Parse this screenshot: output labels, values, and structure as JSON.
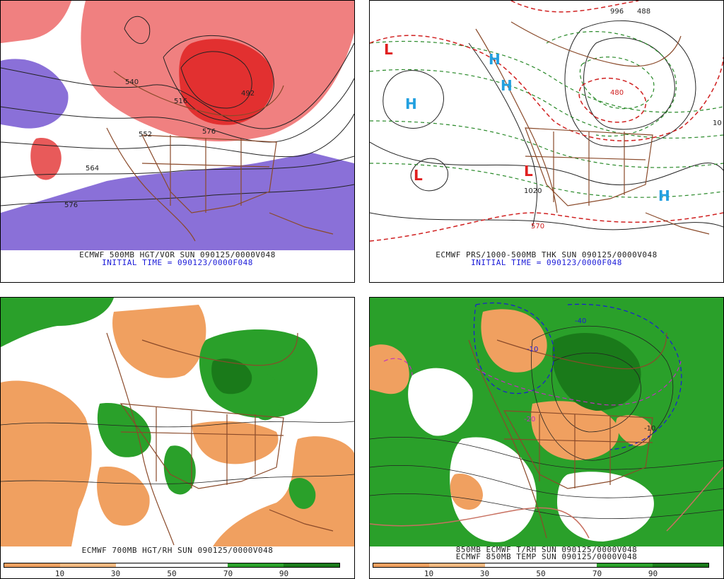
{
  "panels": {
    "p1": {
      "caption1": "ECMWF 500MB HGT/VOR SUN 090125/0000V048",
      "caption2": "INITIAL TIME = 090123/0000F048",
      "contour_labels": [
        "540",
        "516",
        "492",
        "564",
        "552",
        "576",
        "576"
      ]
    },
    "p2": {
      "caption1": "ECMWF PRS/1000-500MB THK SUN 090125/0000V048",
      "caption2": "INITIAL TIME = 090123/0000F048",
      "high_label": "H",
      "low_label": "L",
      "contour_labels": [
        "996",
        "488",
        "480",
        "1020",
        "570",
        "10"
      ]
    },
    "p3": {
      "caption1": "ECMWF 700MB HGT/RH SUN 090125/0000V048",
      "colorbar_ticks": [
        "10",
        "30",
        "50",
        "70",
        "90"
      ]
    },
    "p4": {
      "caption1": "850MB ECMWF T/RH SUN 090125/0000V048",
      "caption2": "ECMWF 850MB TEMP SUN 090125/0000V048",
      "colorbar_ticks": [
        "10",
        "30",
        "50",
        "70",
        "90"
      ],
      "contour_labels": [
        "-40",
        "-10",
        "-20",
        "-10"
      ]
    }
  },
  "colors": {
    "positive_vorticity": "#e85a5a",
    "negative_vorticity": "#8a70d8",
    "dry": "#f0a060",
    "moist": "#2aa02a",
    "very_moist": "#1a7a1a",
    "map_lines": "#8a4a2a",
    "caption_blue": "#1a1ad8",
    "high_marker": "#22a0e0",
    "low_marker": "#e02020"
  }
}
